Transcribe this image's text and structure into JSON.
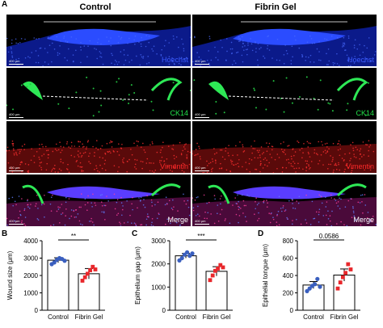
{
  "figure": {
    "panels": {
      "A": "A",
      "B": "B",
      "C": "C",
      "D": "D"
    },
    "columns": [
      "Control",
      "Fibrin Gel"
    ],
    "rows": [
      {
        "label": "Hoechst",
        "color": "#3b5bff",
        "kind": "hoechst"
      },
      {
        "label": "CK14",
        "color": "#22e04a",
        "kind": "ck14"
      },
      {
        "label": "Vimentin",
        "color": "#ff2a2a",
        "kind": "vimentin"
      },
      {
        "label": "Merge",
        "color": "#ffffff",
        "kind": "merge"
      }
    ],
    "scale_bar": "400 μm"
  },
  "chart_data": [
    {
      "type": "bar",
      "panel": "B",
      "categories": [
        "Control",
        "Fibrin Gel"
      ],
      "ylabel": "Wound size (μm)",
      "ylim": [
        0,
        4000
      ],
      "yticks": [
        0,
        1000,
        2000,
        3000,
        4000
      ],
      "values": [
        2880,
        2100
      ],
      "errors": [
        140,
        300
      ],
      "points": [
        [
          2650,
          2750,
          2900,
          3000,
          2950,
          2850
        ],
        [
          1700,
          1900,
          2100,
          2300,
          2500,
          2350
        ]
      ],
      "significance": "**",
      "colors": [
        "#3a5fbf",
        "#e8272b"
      ]
    },
    {
      "type": "bar",
      "panel": "C",
      "categories": [
        "Control",
        "Fibrin Gel"
      ],
      "ylabel": "Epithelium gap (μm)",
      "ylim": [
        0,
        3000
      ],
      "yticks": [
        0,
        1000,
        2000,
        3000
      ],
      "values": [
        2350,
        1680
      ],
      "errors": [
        100,
        200
      ],
      "points": [
        [
          2150,
          2250,
          2400,
          2500,
          2350,
          2450
        ],
        [
          1300,
          1500,
          1700,
          1800,
          1950,
          1850
        ]
      ],
      "significance": "***",
      "colors": [
        "#3a5fbf",
        "#e8272b"
      ]
    },
    {
      "type": "bar",
      "panel": "D",
      "categories": [
        "Control",
        "Fibrin Gel"
      ],
      "ylabel": "Epithelial tongue (μm)",
      "ylim": [
        0,
        800
      ],
      "yticks": [
        0,
        200,
        400,
        600,
        800
      ],
      "values": [
        290,
        405
      ],
      "errors": [
        40,
        70
      ],
      "points": [
        [
          220,
          250,
          280,
          300,
          360,
          270
        ],
        [
          250,
          320,
          380,
          430,
          530,
          470
        ]
      ],
      "significance": "0.0586",
      "colors": [
        "#3a5fbf",
        "#e8272b"
      ]
    }
  ]
}
